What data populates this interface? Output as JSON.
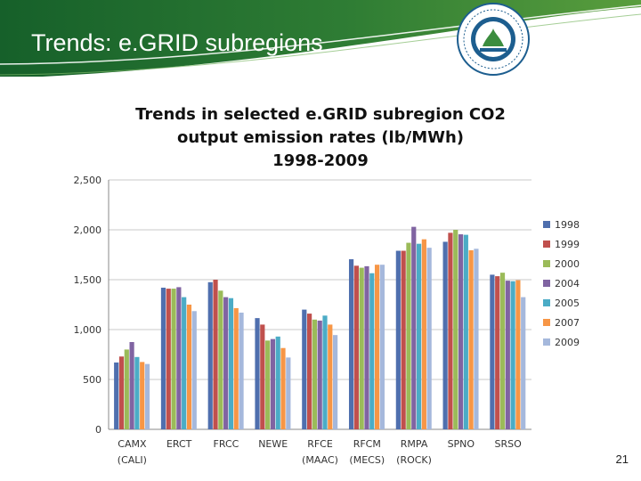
{
  "slide": {
    "title": "Trends: e.GRID subregions",
    "page_number": "21"
  },
  "colors": {
    "banner_dark": "#1d6b2c",
    "banner_light": "#4f9a3f",
    "accent_line": "#ffffff"
  },
  "chart_data": {
    "type": "bar",
    "title_lines": [
      "Trends in selected e.GRID subregion CO2",
      "output emission rates  (lb/MWh)",
      "1998-2009"
    ],
    "categories": [
      [
        "CAMX",
        "(CALI)"
      ],
      [
        "ERCT",
        ""
      ],
      [
        "FRCC",
        ""
      ],
      [
        "NEWE",
        ""
      ],
      [
        "RFCE",
        "(MAAC)"
      ],
      [
        "RFCM",
        "(MECS)"
      ],
      [
        "RMPA",
        "(ROCK)"
      ],
      [
        "SPNO",
        ""
      ],
      [
        "SRSO",
        ""
      ]
    ],
    "ylim": [
      0,
      2500
    ],
    "yticks": [
      0,
      500,
      1000,
      1500,
      2000,
      2500
    ],
    "ytick_labels": [
      "0",
      "500",
      "1,000",
      "1,500",
      "2,000",
      "2,500"
    ],
    "grid": true,
    "legend_position": "right",
    "series": [
      {
        "name": "1998",
        "color": "#4f6fae",
        "values": [
          670,
          1420,
          1475,
          1115,
          1200,
          1705,
          1790,
          1880,
          1550
        ]
      },
      {
        "name": "1999",
        "color": "#c0504d",
        "values": [
          730,
          1410,
          1500,
          1050,
          1160,
          1640,
          1790,
          1970,
          1535
        ]
      },
      {
        "name": "2000",
        "color": "#9bbb59",
        "values": [
          800,
          1410,
          1390,
          890,
          1100,
          1620,
          1870,
          2000,
          1570
        ]
      },
      {
        "name": "2004",
        "color": "#8064a2",
        "values": [
          875,
          1425,
          1325,
          905,
          1090,
          1635,
          2030,
          1955,
          1490
        ]
      },
      {
        "name": "2005",
        "color": "#4bacc6",
        "values": [
          725,
          1325,
          1315,
          930,
          1140,
          1565,
          1860,
          1950,
          1485
        ]
      },
      {
        "name": "2007",
        "color": "#f79646",
        "values": [
          675,
          1250,
          1215,
          815,
          1050,
          1650,
          1905,
          1795,
          1495
        ]
      },
      {
        "name": "2009",
        "color": "#a5b8dc",
        "values": [
          655,
          1185,
          1170,
          720,
          945,
          1650,
          1820,
          1810,
          1325
        ]
      }
    ]
  }
}
